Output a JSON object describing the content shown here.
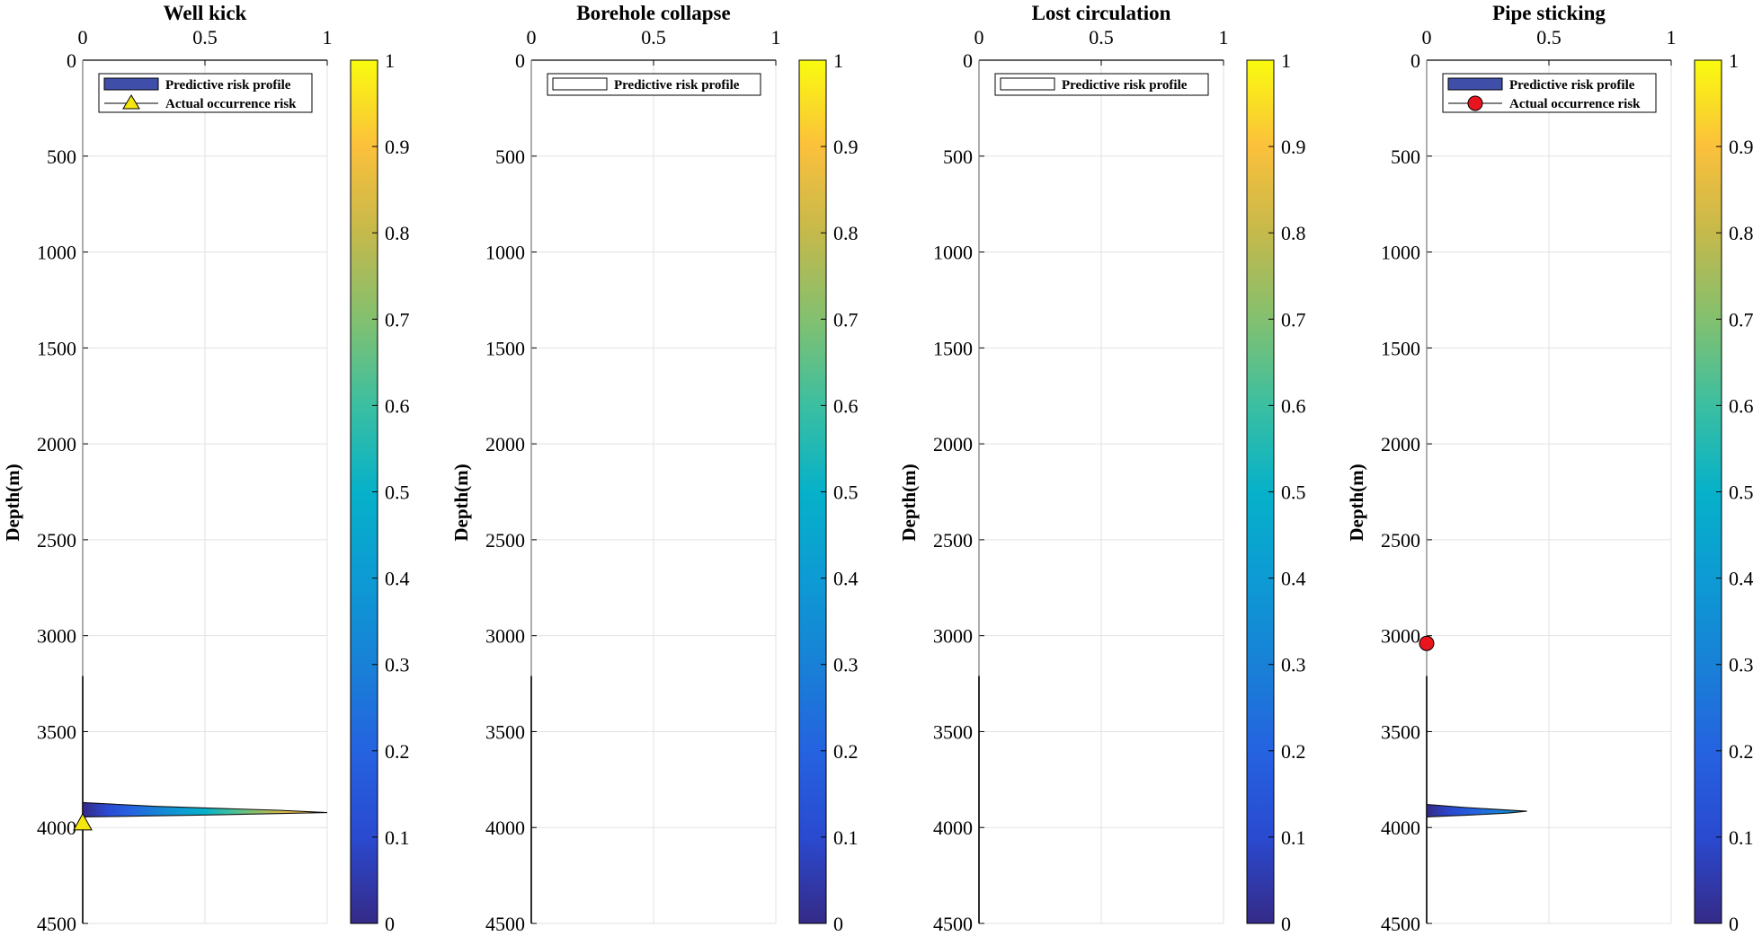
{
  "figure": {
    "ylabel": "Depth(m)",
    "x_ticks": [
      "0",
      "0.5",
      "1"
    ],
    "y_ticks": [
      "0",
      "500",
      "1000",
      "1500",
      "2000",
      "2500",
      "3000",
      "3500",
      "4000",
      "4500"
    ],
    "colorbar_ticks": [
      "0",
      "0.1",
      "0.2",
      "0.3",
      "0.4",
      "0.5",
      "0.6",
      "0.7",
      "0.8",
      "0.9",
      "1"
    ],
    "legend_profile": "Predictive risk profile",
    "legend_actual": "Actual occurrence risk"
  },
  "chart_data": [
    {
      "type": "area",
      "title": "Well kick",
      "xlabel": "",
      "ylabel": "Depth(m)",
      "xlim": [
        0,
        1
      ],
      "ylim": [
        0,
        4500
      ],
      "y_reversed": true,
      "colormap": "parula",
      "colorbar_range": [
        0,
        1
      ],
      "baseline_top_depth": 3210,
      "profile": {
        "depth": [
          3870,
          3890,
          3910,
          3922,
          3935,
          3945
        ],
        "risk": [
          0.0,
          0.3,
          0.8,
          1.0,
          0.5,
          0.0
        ]
      },
      "actual": {
        "marker": "triangle",
        "color": "#f5e60f",
        "depth": [
          3975
        ],
        "risk": [
          0
        ]
      },
      "legend": [
        "Predictive risk profile",
        "Actual occurrence risk"
      ]
    },
    {
      "type": "area",
      "title": "Borehole collapse",
      "xlabel": "",
      "ylabel": "Depth(m)",
      "xlim": [
        0,
        1
      ],
      "ylim": [
        0,
        4500
      ],
      "y_reversed": true,
      "colormap": "parula",
      "colorbar_range": [
        0,
        1
      ],
      "baseline_top_depth": 3210,
      "profile": {
        "depth": [],
        "risk": []
      },
      "actual": null,
      "legend": [
        "Predictive risk profile"
      ]
    },
    {
      "type": "area",
      "title": "Lost circulation",
      "xlabel": "",
      "ylabel": "Depth(m)",
      "xlim": [
        0,
        1
      ],
      "ylim": [
        0,
        4500
      ],
      "y_reversed": true,
      "colormap": "parula",
      "colorbar_range": [
        0,
        1
      ],
      "baseline_top_depth": 3210,
      "profile": {
        "depth": [],
        "risk": []
      },
      "actual": null,
      "legend": [
        "Predictive risk profile"
      ]
    },
    {
      "type": "area",
      "title": "Pipe sticking",
      "xlabel": "",
      "ylabel": "Depth(m)",
      "xlim": [
        0,
        1
      ],
      "ylim": [
        0,
        4500
      ],
      "y_reversed": true,
      "colormap": "parula",
      "colorbar_range": [
        0,
        1
      ],
      "baseline_top_depth": 3210,
      "profile": {
        "depth": [
          3880,
          3895,
          3905,
          3915,
          3925,
          3935,
          3945
        ],
        "risk": [
          0.0,
          0.15,
          0.28,
          0.41,
          0.33,
          0.18,
          0.0
        ]
      },
      "actual": {
        "marker": "circle",
        "color": "#e8141e",
        "depth": [
          3040
        ],
        "risk": [
          0
        ]
      },
      "legend": [
        "Predictive risk profile",
        "Actual occurrence risk"
      ]
    }
  ]
}
